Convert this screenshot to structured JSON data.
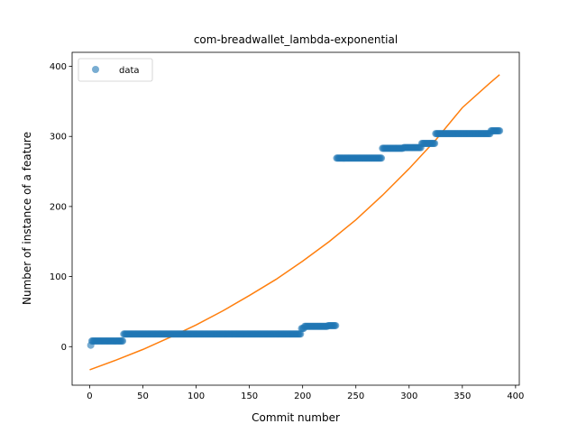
{
  "chart_data": {
    "type": "scatter",
    "title": "com-breadwallet_lambda-exponential",
    "xlabel": "Commit number",
    "ylabel": "Number of instance of a feature",
    "xlim": [
      -16.5,
      403.5
    ],
    "ylim": [
      -55,
      420
    ],
    "x_ticks": [
      0,
      50,
      100,
      150,
      200,
      250,
      300,
      350,
      400
    ],
    "y_ticks": [
      0,
      100,
      200,
      300,
      400
    ],
    "grid": false,
    "legend": {
      "position": "top-left",
      "entries": [
        "data"
      ]
    },
    "colors": {
      "data": "#1f77b4",
      "fit": "#ff7f0e"
    },
    "series": [
      {
        "name": "data",
        "kind": "scatter",
        "steps": [
          {
            "x_start": 1,
            "x_end": 1,
            "y": 2
          },
          {
            "x_start": 2,
            "x_end": 31,
            "y": 8
          },
          {
            "x_start": 32,
            "x_end": 198,
            "y": 18
          },
          {
            "x_start": 199,
            "x_end": 201,
            "y": 26
          },
          {
            "x_start": 202,
            "x_end": 223,
            "y": 29
          },
          {
            "x_start": 224,
            "x_end": 231,
            "y": 30
          },
          {
            "x_start": 232,
            "x_end": 274,
            "y": 269
          },
          {
            "x_start": 275,
            "x_end": 294,
            "y": 283
          },
          {
            "x_start": 295,
            "x_end": 311,
            "y": 284
          },
          {
            "x_start": 312,
            "x_end": 324,
            "y": 290
          },
          {
            "x_start": 325,
            "x_end": 376,
            "y": 304
          },
          {
            "x_start": 377,
            "x_end": 385,
            "y": 308
          }
        ]
      },
      {
        "kind": "line",
        "x": [
          0,
          25,
          50,
          75,
          100,
          125,
          150,
          175,
          200,
          225,
          250,
          275,
          300,
          325,
          350,
          375,
          385
        ],
        "y": [
          -33,
          -19,
          -4,
          13,
          31,
          51,
          73,
          96,
          122,
          150,
          181,
          216,
          254,
          295,
          341,
          375,
          388
        ]
      }
    ]
  }
}
